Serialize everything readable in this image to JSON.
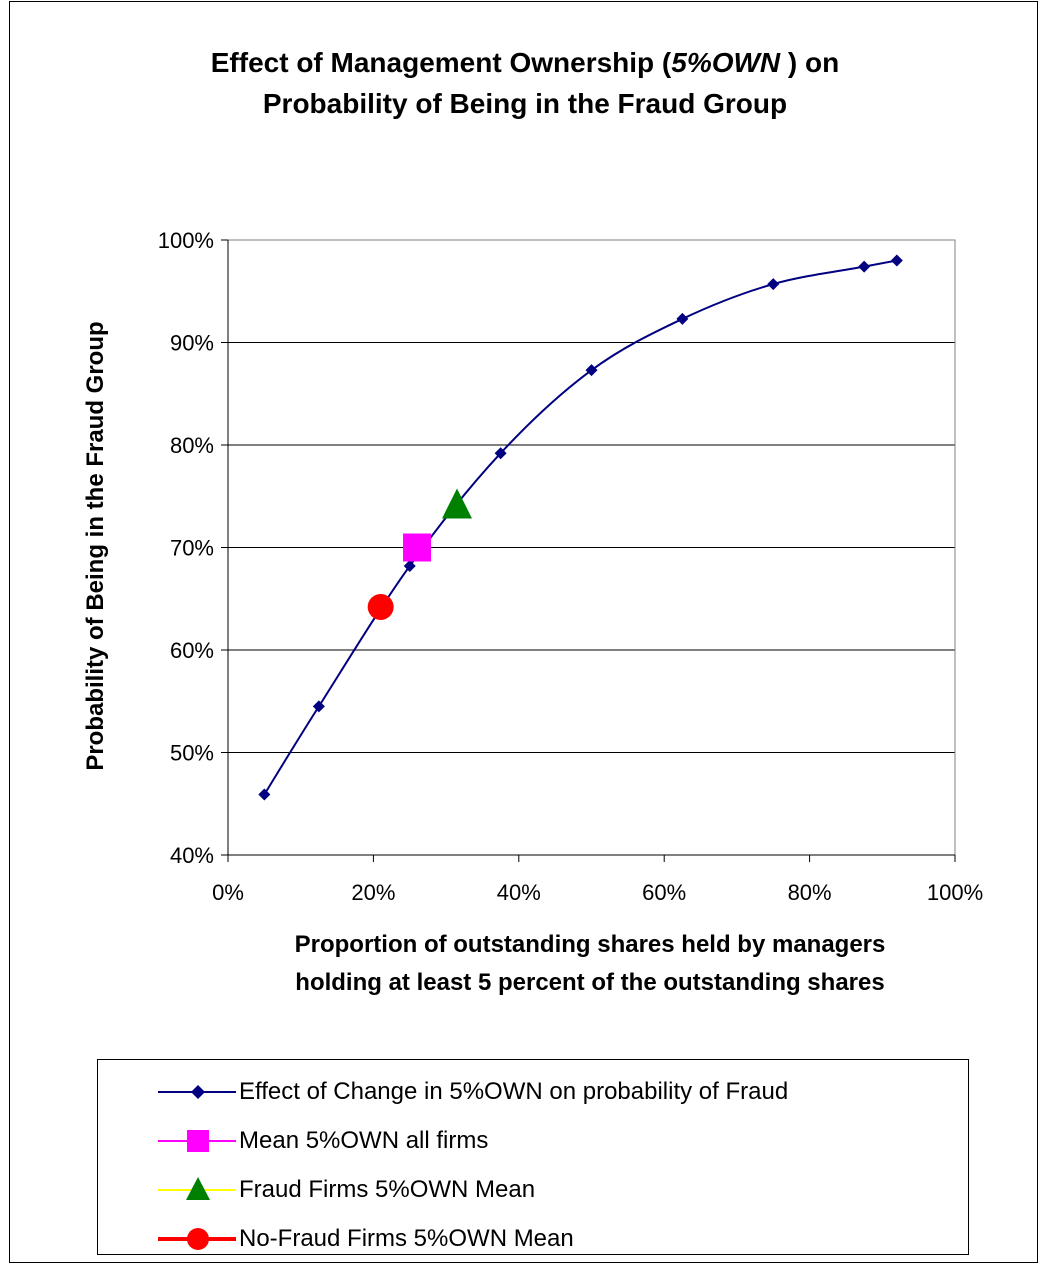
{
  "title_line1_pre": "Effect of Management Ownership (",
  "title_line1_italic": "5%OWN",
  "title_line1_post": " ) on",
  "title_line2": "Probability of Being in the Fraud Group",
  "colors": {
    "curve": "#000080",
    "mean_all": "#FF00FF",
    "fraud": "#008000",
    "fraud_legend_line": "#FFFF00",
    "nofraud": "#FF0000",
    "grid": "#000000"
  },
  "chart_data": {
    "type": "line",
    "title": "Effect of Management Ownership (5%OWN ) on Probability of Being in the Fraud Group",
    "xlabel_line1": "Proportion of outstanding shares held by managers",
    "xlabel_line2": "holding at least 5 percent of the outstanding shares",
    "ylabel": "Probability of Being in the Fraud Group",
    "xlim": [
      0,
      1
    ],
    "ylim": [
      0.4,
      1
    ],
    "x_ticks": [
      0,
      0.2,
      0.4,
      0.6,
      0.8,
      1.0
    ],
    "x_tick_labels": [
      "0%",
      "20%",
      "40%",
      "60%",
      "80%",
      "100%"
    ],
    "y_ticks": [
      0.4,
      0.5,
      0.6,
      0.7,
      0.8,
      0.9,
      1.0
    ],
    "y_tick_labels": [
      "40%",
      "50%",
      "60%",
      "70%",
      "80%",
      "90%",
      "100%"
    ],
    "grid": "horizontal",
    "legend_position": "bottom",
    "series": [
      {
        "name": "Effect of Change in 5%OWN on probability of Fraud",
        "marker": "diamond",
        "x": [
          0.05,
          0.125,
          0.25,
          0.375,
          0.5,
          0.625,
          0.75,
          0.875,
          0.92
        ],
        "y": [
          0.459,
          0.545,
          0.682,
          0.792,
          0.873,
          0.923,
          0.957,
          0.974,
          0.98
        ]
      },
      {
        "name": "Mean 5%OWN all firms",
        "marker": "square",
        "x": [
          0.26
        ],
        "y": [
          0.7
        ]
      },
      {
        "name": "Fraud Firms 5%OWN Mean",
        "marker": "triangle",
        "x": [
          0.315
        ],
        "y": [
          0.742
        ]
      },
      {
        "name": "No-Fraud Firms 5%OWN Mean",
        "marker": "circle",
        "x": [
          0.21
        ],
        "y": [
          0.642
        ]
      }
    ]
  }
}
